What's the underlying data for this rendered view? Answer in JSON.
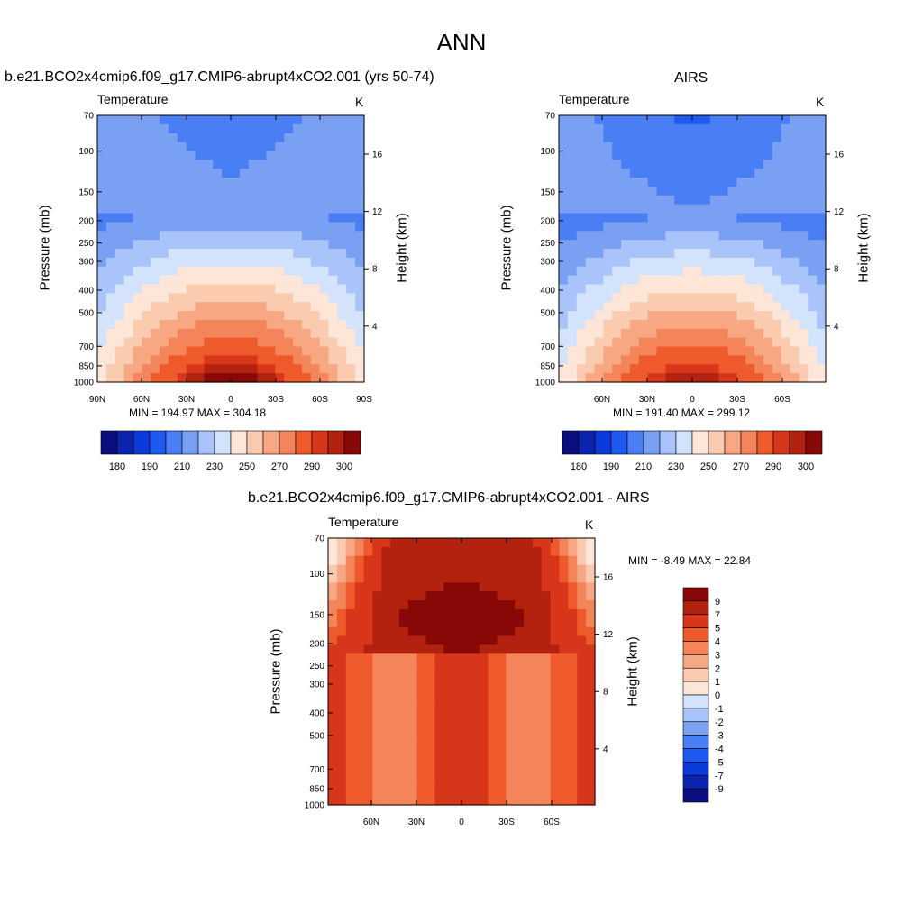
{
  "page": {
    "title": "ANN"
  },
  "panels": [
    {
      "title": "b.e21.BCO2x4cmip6.f09_g17.CMIP6-abrupt4xCO2.001 (yrs 50-74)",
      "var_label": "Temperature",
      "units_label": "K",
      "ylabel_left": "Pressure (mb)",
      "ylabel_right": "Height (km)",
      "stats": "MIN = 194.97  MAX = 304.18"
    },
    {
      "title": "AIRS",
      "var_label": "Temperature",
      "units_label": "K",
      "ylabel_left": "Pressure (mb)",
      "ylabel_right": "Height (km)",
      "stats": "MIN = 191.40  MAX = 299.12"
    },
    {
      "title": "b.e21.BCO2x4cmip6.f09_g17.CMIP6-abrupt4xCO2.001 - AIRS",
      "var_label": "Temperature",
      "units_label": "K",
      "ylabel_left": "Pressure (mb)",
      "ylabel_right": "Height (km)",
      "stats": "MIN =  -8.49  MAX =  22.84"
    }
  ],
  "chart_data": [
    {
      "type": "heatmap",
      "title": "b.e21.BCO2x4cmip6.f09_g17.CMIP6-abrupt4xCO2.001 (yrs 50-74)",
      "subtitle_left": "Temperature",
      "subtitle_right": "K",
      "xlabel": "",
      "ylabel": "Pressure (mb)",
      "ylabel_right": "Height (km)",
      "x_ticks": [
        "90N",
        "60N",
        "30N",
        "0",
        "30S",
        "60S",
        "90S"
      ],
      "y_ticks": [
        70,
        100,
        150,
        200,
        250,
        300,
        400,
        500,
        700,
        850,
        1000
      ],
      "y_scale": "log",
      "y_reversed": true,
      "right_ticks": [
        4,
        8,
        12,
        16
      ],
      "stats": {
        "min": 194.97,
        "max": 304.18
      },
      "colorbar_labels": [
        180,
        190,
        210,
        230,
        250,
        270,
        290,
        300
      ],
      "colorbar_colors": [
        "#0b0f7d",
        "#0a24b0",
        "#0a3ad8",
        "#1e5af0",
        "#4a7ef5",
        "#7aa0f4",
        "#a8c4fa",
        "#d2e3fb",
        "#fde6d8",
        "#fbcbb0",
        "#f7a883",
        "#f4845a",
        "#ef5a2c",
        "#d8361b",
        "#b2220e",
        "#880808"
      ],
      "description_fields": {
        "lat": [
          90,
          60,
          30,
          0,
          -30,
          -60,
          -90
        ],
        "lev": [
          70,
          100,
          150,
          200,
          250,
          300,
          400,
          500,
          700,
          850,
          1000
        ]
      }
    },
    {
      "type": "heatmap",
      "title": "AIRS",
      "subtitle_left": "Temperature",
      "subtitle_right": "K",
      "xlabel": "",
      "ylabel": "Pressure (mb)",
      "ylabel_right": "Height (km)",
      "x_ticks": [
        "60N",
        "30N",
        "0",
        "30S",
        "60S"
      ],
      "y_ticks": [
        70,
        100,
        150,
        200,
        250,
        300,
        400,
        500,
        700,
        850,
        1000
      ],
      "y_scale": "log",
      "y_reversed": true,
      "right_ticks": [
        4,
        8,
        12,
        16
      ],
      "stats": {
        "min": 191.4,
        "max": 299.12
      },
      "colorbar_labels": [
        180,
        190,
        210,
        230,
        250,
        270,
        290,
        300
      ],
      "colorbar_colors": [
        "#0b0f7d",
        "#0a24b0",
        "#0a3ad8",
        "#1e5af0",
        "#4a7ef5",
        "#7aa0f4",
        "#a8c4fa",
        "#d2e3fb",
        "#fde6d8",
        "#fbcbb0",
        "#f7a883",
        "#f4845a",
        "#ef5a2c",
        "#d8361b",
        "#b2220e",
        "#880808"
      ]
    },
    {
      "type": "heatmap",
      "title": "b.e21.BCO2x4cmip6.f09_g17.CMIP6-abrupt4xCO2.001 - AIRS",
      "subtitle_left": "Temperature",
      "subtitle_right": "K",
      "xlabel": "",
      "ylabel": "Pressure (mb)",
      "ylabel_right": "Height (km)",
      "x_ticks": [
        "60N",
        "30N",
        "0",
        "30S",
        "60S"
      ],
      "y_ticks": [
        70,
        100,
        150,
        200,
        250,
        300,
        400,
        500,
        700,
        850,
        1000
      ],
      "y_scale": "log",
      "y_reversed": true,
      "right_ticks": [
        4,
        8,
        12,
        16
      ],
      "stats": {
        "min": -8.49,
        "max": 22.84
      },
      "colorbar_labels": [
        9,
        7,
        5,
        4,
        3,
        2,
        1,
        0,
        -1,
        -2,
        -3,
        -4,
        -5,
        -7,
        -9
      ],
      "colorbar_colors": [
        "#880808",
        "#b2220e",
        "#d8361b",
        "#ef5a2c",
        "#f4845a",
        "#f7a883",
        "#fbcbb0",
        "#fde6d8",
        "#d2e3fb",
        "#a8c4fa",
        "#7aa0f4",
        "#4a7ef5",
        "#1e5af0",
        "#0a3ad8",
        "#0a24b0",
        "#0b0f7d"
      ]
    }
  ]
}
